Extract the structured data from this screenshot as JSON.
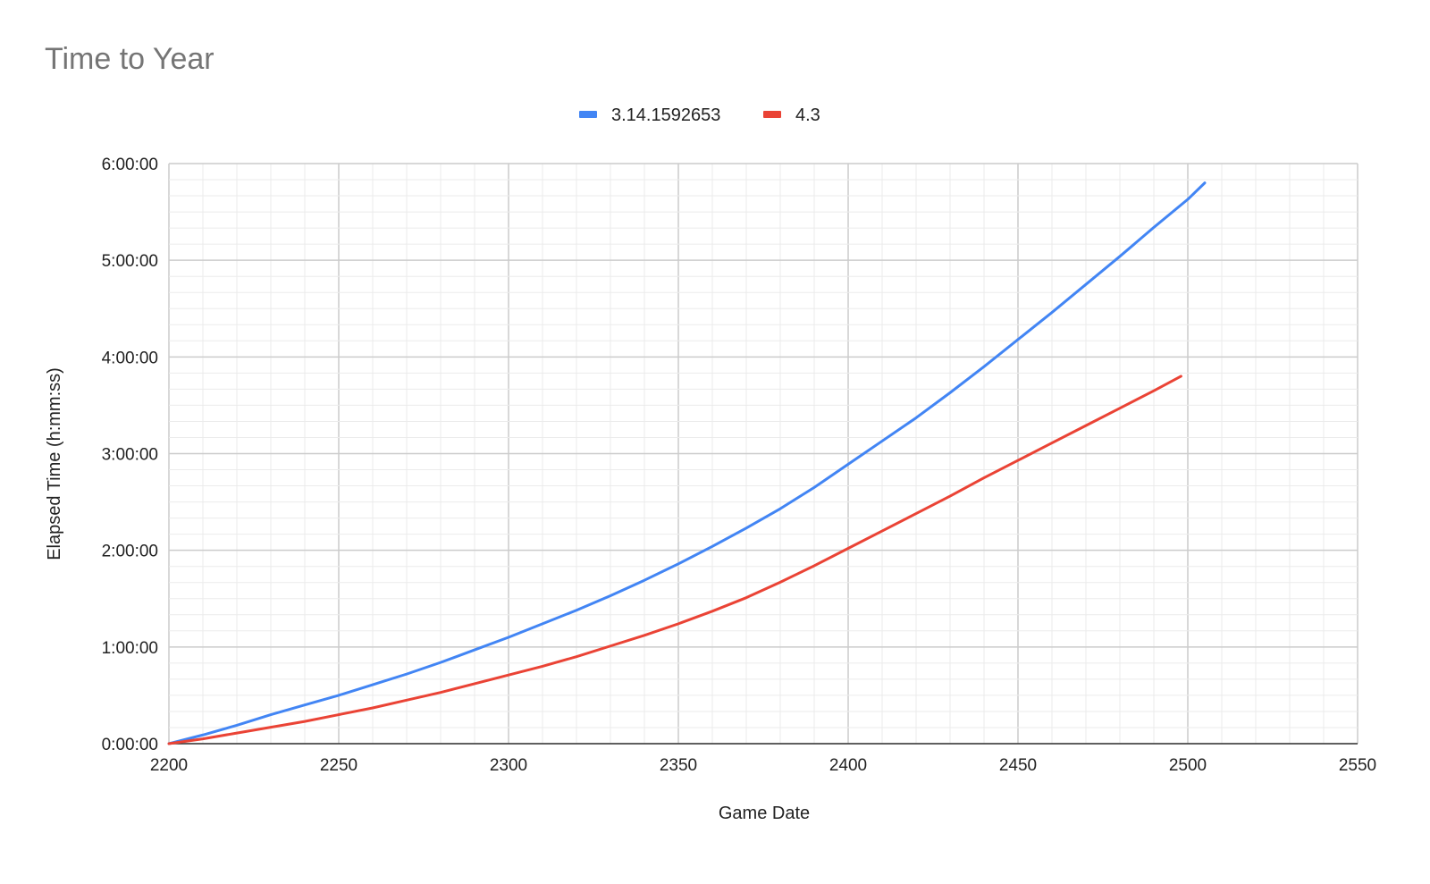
{
  "chart_data": {
    "type": "line",
    "title": "Time to Year",
    "xlabel": "Game Date",
    "ylabel": "Elapsed Time (h:mm:ss)",
    "xlim": [
      2200,
      2550
    ],
    "ylim_hours": [
      0,
      6
    ],
    "x_ticks": [
      "2200",
      "2250",
      "2300",
      "2350",
      "2400",
      "2450",
      "2500",
      "2550"
    ],
    "y_ticks": [
      "0:00:00",
      "1:00:00",
      "2:00:00",
      "3:00:00",
      "4:00:00",
      "5:00:00",
      "6:00:00"
    ],
    "grid": true,
    "legend_position": "top",
    "y_unit": "hours",
    "series": [
      {
        "name": "3.14.1592653",
        "color": "#4285f4",
        "x": [
          2200,
          2210,
          2220,
          2230,
          2240,
          2250,
          2260,
          2270,
          2280,
          2290,
          2300,
          2310,
          2320,
          2330,
          2340,
          2350,
          2360,
          2370,
          2380,
          2390,
          2400,
          2410,
          2420,
          2430,
          2440,
          2450,
          2460,
          2470,
          2480,
          2490,
          2500,
          2505
        ],
        "y": [
          0,
          0.09,
          0.19,
          0.3,
          0.4,
          0.5,
          0.61,
          0.72,
          0.84,
          0.97,
          1.1,
          1.24,
          1.38,
          1.53,
          1.69,
          1.86,
          2.04,
          2.23,
          2.43,
          2.65,
          2.89,
          3.13,
          3.37,
          3.63,
          3.9,
          4.18,
          4.46,
          4.75,
          5.04,
          5.34,
          5.63,
          5.8
        ]
      },
      {
        "name": "4.3",
        "color": "#ea4335",
        "x": [
          2200,
          2210,
          2220,
          2230,
          2240,
          2250,
          2260,
          2270,
          2280,
          2290,
          2300,
          2310,
          2320,
          2330,
          2340,
          2350,
          2360,
          2370,
          2380,
          2390,
          2400,
          2410,
          2420,
          2430,
          2440,
          2450,
          2460,
          2470,
          2480,
          2490,
          2498
        ],
        "y": [
          0,
          0.05,
          0.11,
          0.17,
          0.23,
          0.3,
          0.37,
          0.45,
          0.53,
          0.62,
          0.71,
          0.8,
          0.9,
          1.01,
          1.12,
          1.24,
          1.37,
          1.51,
          1.67,
          1.84,
          2.02,
          2.2,
          2.38,
          2.56,
          2.75,
          2.93,
          3.11,
          3.29,
          3.47,
          3.65,
          3.8
        ]
      }
    ]
  }
}
